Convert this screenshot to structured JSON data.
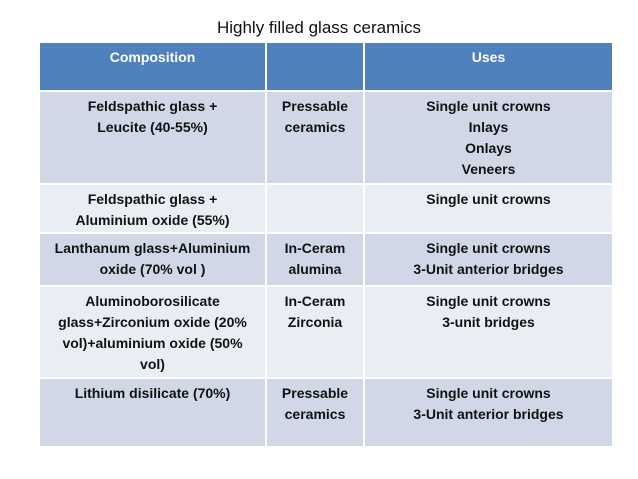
{
  "title": "Highly filled glass ceramics",
  "table": {
    "header": [
      [
        "Composition"
      ],
      [],
      [
        "Uses"
      ]
    ],
    "rows": [
      [
        [
          "Feldspathic glass +",
          "Leucite (40-55%)"
        ],
        [
          "Pressable",
          "ceramics"
        ],
        [
          "Single unit crowns",
          "Inlays",
          "Onlays",
          "Veneers"
        ]
      ],
      [
        [
          "Feldspathic glass +",
          "Aluminium oxide (55%)"
        ],
        [],
        [
          "Single unit crowns"
        ]
      ],
      [
        [
          "Lanthanum glass+Aluminium",
          "oxide (70% vol )"
        ],
        [
          "In-Ceram",
          "alumina"
        ],
        [
          "Single unit crowns",
          "3-Unit anterior bridges"
        ]
      ],
      [
        [
          "Aluminoborosilicate",
          "glass+Zirconium oxide (20%",
          "vol)+aluminium oxide (50%",
          "vol)"
        ],
        [
          "In-Ceram",
          "Zirconia"
        ],
        [
          "Single unit crowns",
          "3-unit bridges"
        ]
      ],
      [
        [
          "Lithium disilicate (70%)"
        ],
        [
          "Pressable",
          "ceramics"
        ],
        [
          "Single unit crowns",
          "3-Unit anterior bridges"
        ]
      ]
    ]
  }
}
